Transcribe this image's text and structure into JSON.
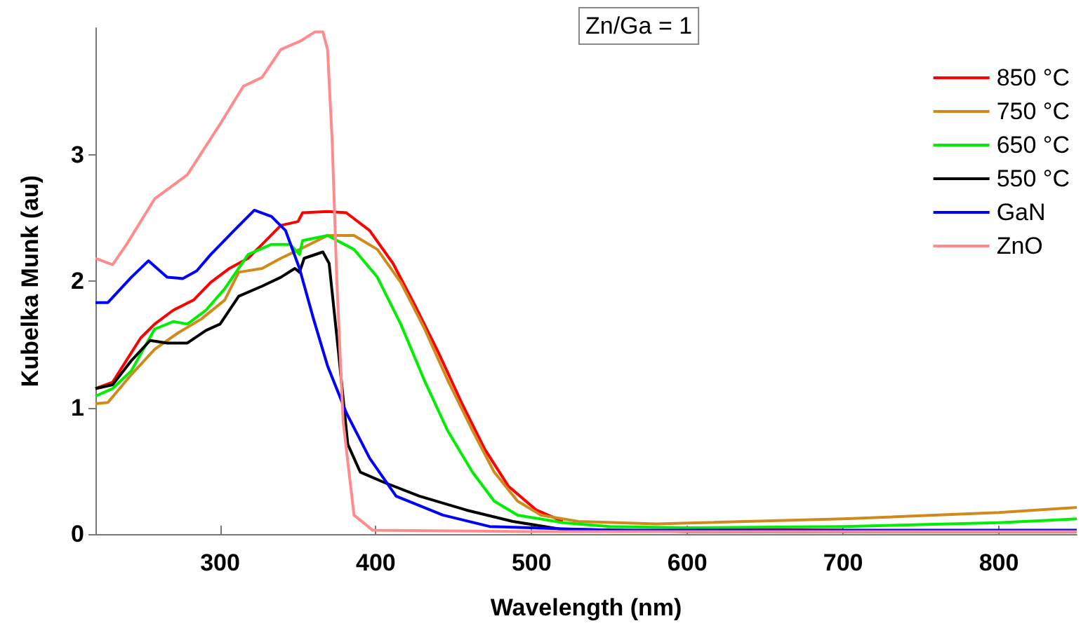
{
  "chart_data": {
    "type": "line",
    "xlabel": "Wavelength (nm)",
    "ylabel": "Kubelka Munk (au)",
    "annotations": [
      "Zn/Ga = 1"
    ],
    "xlim": [
      220,
      850
    ],
    "ylim": [
      0,
      4
    ],
    "xticks": [
      300,
      400,
      500,
      600,
      700,
      800
    ],
    "yticks": [
      0,
      1,
      2,
      3
    ],
    "grid": false,
    "legend": "top right",
    "marker": "none",
    "line_style": "solid",
    "series": [
      {
        "name": "850 °C",
        "color": "#ff0000",
        "x": [
          220,
          231,
          249,
          258,
          270,
          283,
          294,
          306,
          318,
          327,
          339,
          350,
          353,
          369,
          381,
          396,
          411,
          425,
          440,
          455,
          470,
          485,
          503,
          520,
          550,
          600,
          700
        ],
        "values": [
          1.15,
          1.2,
          1.55,
          1.66,
          1.77,
          1.85,
          1.99,
          2.1,
          2.18,
          2.29,
          2.44,
          2.47,
          2.54,
          2.55,
          2.54,
          2.4,
          2.14,
          1.81,
          1.44,
          1.04,
          0.67,
          0.38,
          0.19,
          0.1,
          null,
          0.04,
          0.03
        ]
      },
      {
        "name": "750 °C",
        "color": "#d08a1c",
        "x": [
          220,
          228,
          243,
          258,
          273,
          288,
          303,
          312,
          327,
          339,
          351,
          369,
          386,
          401,
          416,
          431,
          446,
          462,
          476,
          491,
          506,
          530,
          580,
          700,
          800,
          850
        ],
        "values": [
          1.03,
          1.04,
          1.26,
          1.46,
          1.59,
          1.7,
          1.85,
          2.07,
          2.1,
          2.18,
          2.25,
          2.36,
          2.36,
          2.25,
          1.99,
          1.63,
          1.22,
          0.82,
          0.49,
          0.26,
          0.15,
          0.1,
          0.08,
          0.12,
          0.17,
          0.21
        ]
      },
      {
        "name": "650 °C",
        "color": "#00ee00",
        "x": [
          220,
          231,
          243,
          258,
          270,
          279,
          291,
          303,
          318,
          333,
          345,
          351,
          353,
          369,
          386,
          401,
          416,
          431,
          446,
          462,
          476,
          491,
          520,
          550,
          600,
          700,
          800,
          850
        ],
        "values": [
          1.09,
          1.15,
          1.29,
          1.62,
          1.68,
          1.66,
          1.77,
          1.94,
          2.21,
          2.29,
          2.29,
          2.21,
          2.32,
          2.36,
          2.25,
          2.03,
          1.66,
          1.22,
          0.82,
          0.49,
          0.26,
          0.15,
          0.09,
          0.06,
          0.05,
          0.06,
          0.09,
          0.12
        ]
      },
      {
        "name": "550 °C",
        "color": "#000000",
        "x": [
          220,
          231,
          243,
          255,
          266,
          279,
          291,
          300,
          312,
          327,
          339,
          348,
          351,
          354,
          366,
          370,
          376,
          382,
          390,
          405,
          428,
          458,
          488,
          518,
          600,
          850
        ],
        "values": [
          1.15,
          1.18,
          1.37,
          1.53,
          1.51,
          1.51,
          1.61,
          1.66,
          1.88,
          1.96,
          2.03,
          2.1,
          2.07,
          2.18,
          2.23,
          2.14,
          1.44,
          0.71,
          0.49,
          0.41,
          0.3,
          0.19,
          0.1,
          0.04,
          0.02,
          0.02
        ]
      },
      {
        "name": "GaN",
        "color": "#0000ff",
        "x": [
          220,
          228,
          243,
          254,
          266,
          276,
          285,
          294,
          309,
          322,
          333,
          342,
          351,
          360,
          369,
          381,
          396,
          413,
          443,
          473,
          550,
          850
        ],
        "values": [
          1.83,
          1.83,
          2.03,
          2.16,
          2.03,
          2.02,
          2.08,
          2.21,
          2.4,
          2.56,
          2.51,
          2.4,
          2.1,
          1.7,
          1.33,
          0.96,
          0.6,
          0.3,
          0.15,
          0.06,
          0.03,
          0.03
        ]
      },
      {
        "name": "ZnO",
        "color": "#ff8c8c",
        "x": [
          220,
          231,
          240,
          258,
          279,
          300,
          315,
          327,
          339,
          352,
          361,
          366,
          369,
          372,
          375,
          379,
          386,
          398,
          500,
          850
        ],
        "values": [
          2.18,
          2.13,
          2.29,
          2.65,
          2.84,
          3.24,
          3.54,
          3.61,
          3.83,
          3.9,
          3.97,
          3.97,
          3.83,
          3.1,
          1.99,
          0.89,
          0.15,
          0.03,
          0.02,
          0.02
        ]
      }
    ]
  }
}
